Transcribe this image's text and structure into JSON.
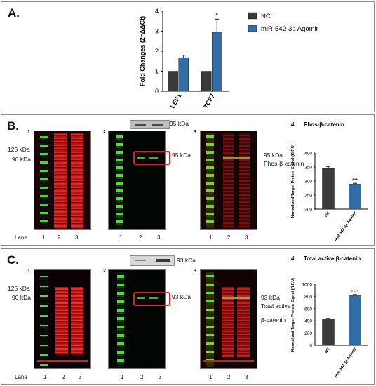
{
  "panelA": {
    "label": "A.",
    "chart_data": {
      "type": "bar",
      "categories": [
        "LEF1",
        "TCF7"
      ],
      "series": [
        {
          "name": "NC",
          "values": [
            1.0,
            1.0
          ],
          "errors": [
            0,
            0
          ],
          "color": "#3a3a3a"
        },
        {
          "name": "miR-542-3p Agomir",
          "values": [
            1.68,
            2.95
          ],
          "errors": [
            0.12,
            0.65
          ],
          "color": "#2f6ea6"
        }
      ],
      "ylabel": "Fold Changes (2⁻ΔΔCt)",
      "ylim": [
        0,
        4
      ],
      "yticks": [
        "0",
        "1",
        "2",
        "3",
        "4"
      ],
      "significance": [
        {
          "category": "TCF7",
          "mark": "*"
        }
      ],
      "legend": "right"
    }
  },
  "panelB": {
    "label": "B.",
    "sub1": "1.",
    "sub2": "2.",
    "sub3": "3.",
    "sub4": "4.",
    "mw125": "125 kDa",
    "mw90": "90 kDa",
    "inset_kda": "95 kDa",
    "blot2_kda": "95 kDa",
    "blot3_kda": "95 kDa",
    "blot3_target": "Phos-β-catenin",
    "lane_title": "Lane",
    "lanes": [
      "1",
      "2",
      "3"
    ],
    "chart_data": {
      "type": "bar",
      "title": "Phos-β-catenin",
      "categories": [
        "NC",
        "miR-542-3p Agomir"
      ],
      "values": [
        345,
        289
      ],
      "errors": [
        6,
        3
      ],
      "colors": [
        "#3a3a3a",
        "#2f6ea6"
      ],
      "ylabel": "Normalized Target Protein Signal (R.F.U)",
      "ylim": [
        200,
        400
      ],
      "yticks": [
        "200",
        "250",
        "300",
        "350",
        "400"
      ],
      "significance": [
        {
          "category": "miR-542-3p Agomir",
          "mark": "***"
        }
      ]
    }
  },
  "panelC": {
    "label": "C.",
    "sub1": "1.",
    "sub2": "2.",
    "sub3": "3.",
    "sub4": "4.",
    "mw125": "125 kDa",
    "mw90": "90 kDa",
    "inset_kda": "93 kDa",
    "blot2_kda": "93 kDa",
    "blot3_kda": "93 kDa",
    "blot3_target1": "Total active",
    "blot3_target2": "β-catenin",
    "lane_title": "Lane",
    "lanes": [
      "1",
      "2",
      "3"
    ],
    "chart_data": {
      "type": "bar",
      "title": "Total active β-catenin",
      "categories": [
        "NC",
        "miR-542-3p Agomir"
      ],
      "values": [
        430,
        815
      ],
      "errors": [
        10,
        15
      ],
      "colors": [
        "#3a3a3a",
        "#2f6ea6"
      ],
      "ylabel": "Normalized Target Protein Signal (R.F.U)",
      "ylim": [
        0,
        1000
      ],
      "yticks": [
        "0",
        "200",
        "400",
        "600",
        "800",
        "1000"
      ],
      "significance": [
        {
          "category": "miR-542-3p Agomir",
          "mark": "****"
        }
      ]
    }
  }
}
